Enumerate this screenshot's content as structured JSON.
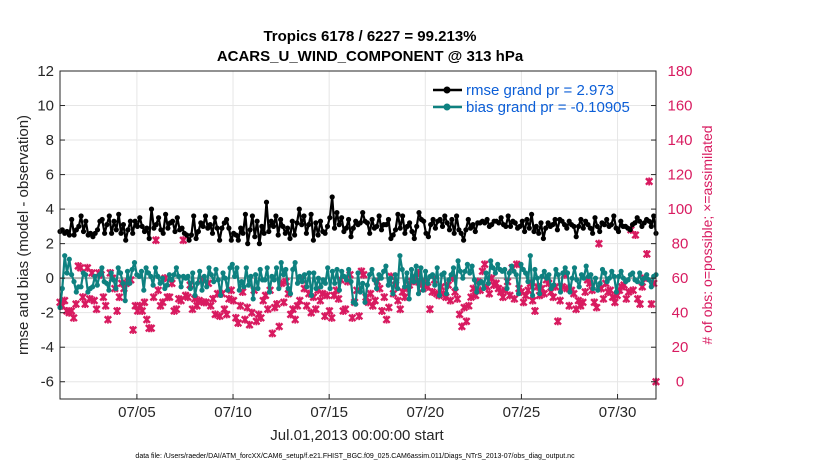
{
  "chart_data": {
    "type": "line",
    "title": "Tropics 6178 / 6227 = 99.213%",
    "subtitle": "ACARS_U_WIND_COMPONENT @ 313 hPa",
    "xlabel": "Jul.01,2013 00:00:00 start",
    "ylabel": "rmse and bias (model - observation)",
    "ylabel_right": "# of obs: o=possible; ×=assimilated",
    "x_start": 1,
    "x_end": 32,
    "xlim": [
      1,
      32
    ],
    "x_ticks": [
      5,
      10,
      15,
      20,
      25,
      30
    ],
    "x_tick_labels": [
      "07/05",
      "07/10",
      "07/15",
      "07/20",
      "07/25",
      "07/30"
    ],
    "ylim": [
      -7,
      12
    ],
    "y_ticks": [
      -6,
      -4,
      -2,
      0,
      2,
      4,
      6,
      8,
      10,
      12
    ],
    "y_tick_labels": [
      "-6",
      "-4",
      "-2",
      "0",
      "2",
      "4",
      "6",
      "8",
      "10",
      "12"
    ],
    "ylim_right": [
      -10,
      180
    ],
    "y_ticks_right": [
      0,
      20,
      40,
      60,
      80,
      100,
      120,
      140,
      160,
      180
    ],
    "y_tick_labels_right": [
      "0",
      "20",
      "40",
      "60",
      "80",
      "100",
      "120",
      "140",
      "160",
      "180"
    ],
    "grid": true,
    "legend_position": "top-right",
    "colors": {
      "rmse": "#000000",
      "bias": "#0e8180",
      "obs": "#d81b60",
      "legend_text": "#0b5ed7",
      "zero_line": "#b0b0b0"
    },
    "series": [
      {
        "name": "rmse grand pr = 2.973",
        "values": [
          2.7,
          2.8,
          2.6,
          2.7,
          2.5,
          3.4,
          2.5,
          2.8,
          3.0,
          3.6,
          2.7,
          3.3,
          2.5,
          2.6,
          2.4,
          2.6,
          2.8,
          3.3,
          3.4,
          2.6,
          3.1,
          3.6,
          2.6,
          3.3,
          2.8,
          3.7,
          2.6,
          3.1,
          2.2,
          2.8,
          3.3,
          2.6,
          3.3,
          3.0,
          3.5,
          3.0,
          2.7,
          2.9,
          2.3,
          4.0,
          2.9,
          3.1,
          3.5,
          2.8,
          2.6,
          3.7,
          2.9,
          3.2,
          3.3,
          2.7,
          3.5,
          2.8,
          2.9,
          2.6,
          2.5,
          2.2,
          2.5,
          3.6,
          2.3,
          2.7,
          3.2,
          3.0,
          3.6,
          2.9,
          3.1,
          2.6,
          3.5,
          2.9,
          2.2,
          2.9,
          3.2,
          3.4,
          2.9,
          2.2,
          2.6,
          2.5,
          2.2,
          2.9,
          2.6,
          3.7,
          2.0,
          2.8,
          3.6,
          2.4,
          3.3,
          2.0,
          3.0,
          2.6,
          4.4,
          2.7,
          3.3,
          3.0,
          3.6,
          2.5,
          3.4,
          3.0,
          2.6,
          2.9,
          2.3,
          3.3,
          2.5,
          3.2,
          4.0,
          3.1,
          3.6,
          2.6,
          3.1,
          3.7,
          2.2,
          3.2,
          2.5,
          3.3,
          2.7,
          2.6,
          3.0,
          3.5,
          4.7,
          2.9,
          3.8,
          3.1,
          3.5,
          2.7,
          2.9,
          3.4,
          2.4,
          2.9,
          3.3,
          3.1,
          3.2,
          3.8,
          3.3,
          3.2,
          2.6,
          3.4,
          2.9,
          3.0,
          3.6,
          2.8,
          3.1,
          3.1,
          3.4,
          2.3,
          2.5,
          2.8,
          3.7,
          2.9,
          3.6,
          2.6,
          3.0,
          3.2,
          2.7,
          2.3,
          3.0,
          3.8,
          3.4,
          3.3,
          2.6,
          2.4,
          3.1,
          3.4,
          2.9,
          3.3,
          3.4,
          3.0,
          3.6,
          3.2,
          2.8,
          3.4,
          2.6,
          3.6,
          2.8,
          2.6,
          2.2,
          2.8,
          3.4,
          2.9,
          3.1,
          2.7,
          3.2,
          3.2,
          3.3,
          3.2,
          3.4,
          3.0,
          3.1,
          3.3,
          3.3,
          3.2,
          3.5,
          3.1,
          3.0,
          3.6,
          3.0,
          3.3,
          3.2,
          2.9,
          3.0,
          3.3,
          2.7,
          3.4,
          2.9,
          3.7,
          2.7,
          3.0,
          2.6,
          3.2,
          2.3,
          2.9,
          3.2,
          3.0,
          3.1,
          3.4,
          2.8,
          3.4,
          3.3,
          3.1,
          2.9,
          3.3,
          3.1,
          3.0,
          2.4,
          3.0,
          3.4,
          2.9,
          3.3,
          3.1,
          2.9,
          2.6,
          3.5,
          3.0,
          2.7,
          3.2,
          3.1,
          3.4,
          3.0,
          3.1,
          3.6,
          2.9,
          2.7,
          3.3,
          3.0,
          3.0,
          2.9,
          2.8,
          3.1,
          3.2,
          3.5,
          3.3,
          3.0,
          3.2,
          3.4,
          3.3,
          3.0,
          3.6,
          2.6
        ]
      },
      {
        "name": "bias grand pr = -0.10905",
        "values": [
          -1.7,
          -0.6,
          1.3,
          0.3,
          1.1,
          0.2,
          -0.2,
          -0.8,
          -0.5,
          -0.5,
          0.3,
          0.2,
          -0.8,
          -0.6,
          -0.5,
          0.1,
          -0.4,
          0.2,
          0.6,
          -0.2,
          -0.3,
          -0.7,
          0.3,
          -0.1,
          -0.6,
          0.6,
          0.3,
          -0.3,
          -1.3,
          0.4,
          -0.3,
          0.5,
          0.9,
          0.2,
          0.1,
          0.4,
          -0.7,
          0.6,
          0.3,
          0.1,
          -0.4,
          0.6,
          0.1,
          -0.3,
          0.0,
          -0.6,
          -0.4,
          0.2,
          -0.1,
          0.2,
          0.6,
          0.1,
          -0.5,
          0.1,
          0.0,
          0.1,
          -0.6,
          0.3,
          -1.0,
          -0.3,
          0.4,
          -0.7,
          0.1,
          -0.5,
          0.6,
          0.2,
          -0.2,
          0.5,
          -0.1,
          -1.0,
          0.3,
          0.0,
          -0.7,
          0.6,
          0.8,
          0.1,
          0.6,
          -0.7,
          -0.2,
          -0.5,
          0.6,
          -0.4,
          0.1,
          -1.2,
          0.2,
          -0.6,
          0.5,
          -0.1,
          -0.1,
          0.6,
          -0.8,
          0.1,
          -0.1,
          0.6,
          -0.6,
          0.9,
          0.2,
          0.5,
          -0.6,
          -0.9,
          0.5,
          0.9,
          -0.3,
          0.1,
          -0.2,
          0.2,
          -0.5,
          0.3,
          -1.0,
          0.3,
          -0.6,
          0.0,
          -0.5,
          -0.1,
          -0.3,
          0.6,
          -0.6,
          0.4,
          -0.3,
          0.5,
          -0.7,
          0.4,
          0.1,
          -0.1,
          0.5,
          -0.2,
          -1.4,
          -1.5,
          0.3,
          -0.8,
          -0.3,
          -1.4,
          -0.4,
          0.2,
          0.5,
          -0.1,
          -0.6,
          0.2,
          0.0,
          0.4,
          0.7,
          -0.4,
          0.0,
          -0.9,
          0.2,
          -0.6,
          1.3,
          0.5,
          -0.5,
          0.3,
          -1.2,
          0.5,
          -0.2,
          0.7,
          -0.9,
          0.6,
          -0.7,
          0.4,
          -0.3,
          0.1,
          0.2,
          -0.4,
          0.6,
          -1.0,
          0.2,
          0.3,
          -0.9,
          -0.1,
          0.2,
          0.6,
          -0.6,
          1.0,
          0.4,
          0.0,
          0.4,
          0.8,
          0.3,
          0.7,
          -0.1,
          -0.8,
          -0.3,
          -0.2,
          -0.6,
          0.3,
          -0.3,
          1.0,
          0.6,
          0.3,
          0.8,
          0.5,
          0.4,
          0.5,
          -0.6,
          0.3,
          0.7,
          0.4,
          0.2,
          -0.9,
          0.8,
          0.5,
          0.3,
          -0.2,
          1.3,
          -1.0,
          0.5,
          0.0,
          -0.9,
          0.1,
          0.4,
          0.0,
          0.2,
          -0.6,
          -0.4,
          0.5,
          0.2,
          -0.8,
          0.3,
          0.6,
          0.3,
          -0.8,
          0.0,
          0.6,
          -0.1,
          -0.5,
          0.2,
          0.0,
          0.7,
          0.1,
          0.2,
          -0.6,
          0.0,
          -0.7,
          -0.3,
          0.5,
          0.3,
          -0.2,
          0.0,
          0.4,
          0.1,
          -0.8,
          0.1,
          0.4,
          0.0,
          -0.2,
          -0.1,
          0.2,
          0.3,
          -0.1,
          -0.2,
          0.3,
          -0.3,
          0.0,
          0.2,
          -0.1,
          -0.5,
          0.1,
          0.2
        ]
      },
      {
        "name": "# of obs assimilated",
        "marker": "x",
        "axis": "right",
        "values": [
          46,
          44,
          47,
          41,
          40,
          41,
          37,
          45,
          67,
          66,
          49,
          45,
          66,
          48,
          63,
          47,
          42,
          63,
          62,
          49,
          44,
          36,
          63,
          60,
          54,
          41,
          49,
          57,
          54,
          57,
          58,
          59,
          30,
          44,
          41,
          44,
          41,
          46,
          36,
          31,
          31,
          49,
          82,
          53,
          44,
          46,
          60,
          49,
          49,
          57,
          41,
          42,
          48,
          47,
          82,
          50,
          49,
          56,
          42,
          48,
          44,
          47,
          59,
          46,
          46,
          57,
          44,
          48,
          39,
          51,
          38,
          51,
          42,
          39,
          48,
          53,
          47,
          37,
          34,
          44,
          52,
          36,
          43,
          33,
          40,
          53,
          35,
          39,
          37,
          47,
          50,
          42,
          53,
          28,
          43,
          45,
          32,
          57,
          46,
          58,
          51,
          39,
          42,
          36,
          44,
          47,
          59,
          54,
          44,
          51,
          40,
          49,
          42,
          53,
          47,
          51,
          38,
          50,
          41,
          37,
          50,
          53,
          48,
          59,
          41,
          42,
          58,
          62,
          37,
          46,
          53,
          38,
          64,
          62,
          49,
          46,
          51,
          44,
          47,
          58,
          54,
          41,
          49,
          36,
          43,
          61,
          51,
          56,
          47,
          42,
          52,
          49,
          54,
          56,
          58,
          60,
          58,
          63,
          57,
          54,
          58,
          55,
          42,
          52,
          59,
          51,
          50,
          55,
          51,
          49,
          56,
          47,
          60,
          52,
          48,
          39,
          32,
          43,
          35,
          44,
          49,
          54,
          50,
          58,
          53,
          64,
          68,
          55,
          51,
          60,
          56,
          57,
          54,
          52,
          49,
          53,
          58,
          50,
          66,
          48,
          68,
          54,
          52,
          46,
          50,
          53,
          57,
          47,
          41,
          55,
          50,
          54,
          51,
          59,
          57,
          52,
          49,
          55,
          35,
          47,
          55,
          62,
          54,
          44,
          53,
          51,
          42,
          47,
          44,
          46,
          52,
          59,
          57,
          53,
          46,
          43,
          80,
          54,
          48,
          57,
          52,
          53,
          49,
          46,
          50,
          53,
          55,
          56,
          48,
          52,
          88,
          53,
          85,
          48,
          45,
          55,
          60,
          74,
          116,
          45,
          57,
          0
        ]
      }
    ],
    "legend": [
      {
        "label": "rmse grand pr = 2.973",
        "series": "rmse"
      },
      {
        "label": "bias grand pr = -0.10905",
        "series": "bias"
      }
    ]
  },
  "footer": "data file: /Users/raeder/DAI/ATM_forcXX/CAM6_setup/f.e21.FHIST_BGC.f09_025.CAM6assim.011/Diags_NTrS_2013-07/obs_diag_output.nc"
}
